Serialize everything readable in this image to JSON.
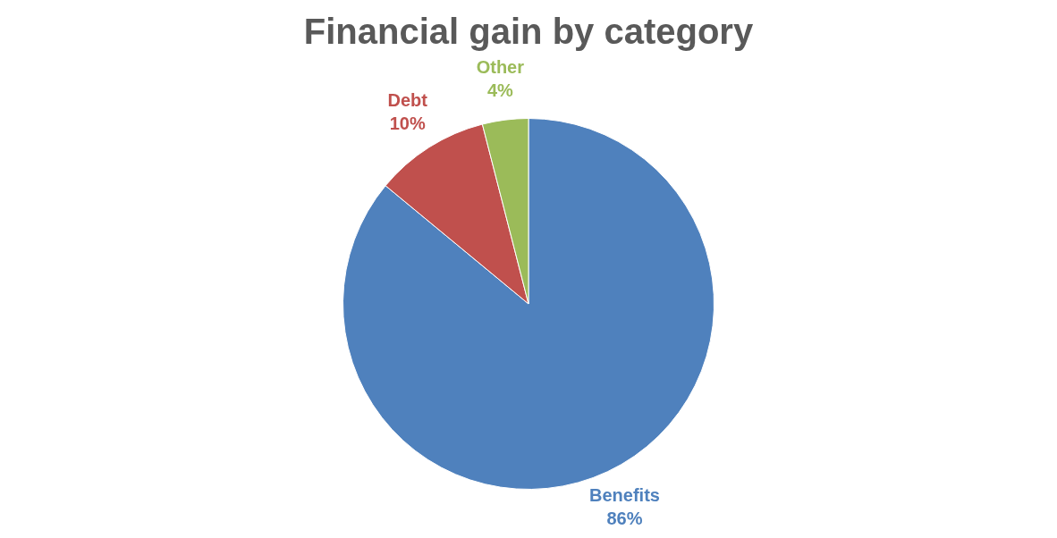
{
  "chart_data": {
    "type": "pie",
    "title": "Financial gain by category",
    "categories": [
      "Benefits",
      "Debt",
      "Other"
    ],
    "values": [
      86,
      10,
      4
    ],
    "colors": [
      "#4f81bd",
      "#c0504d",
      "#9bbb59"
    ],
    "value_labels": [
      "86%",
      "10%",
      "4%"
    ],
    "legend": false
  }
}
